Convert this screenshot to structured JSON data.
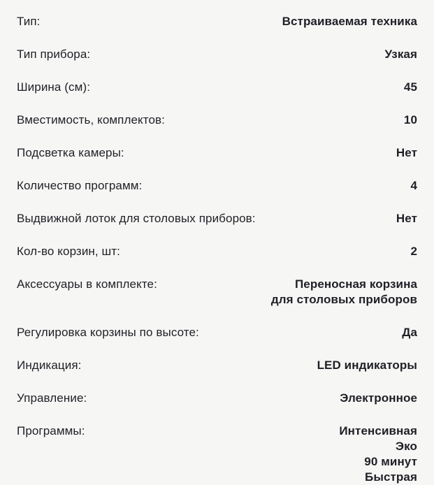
{
  "page": {
    "background_color": "#f6f6f5",
    "text_color": "#1f1f26"
  },
  "specs": {
    "rows": [
      {
        "label": "Тип:",
        "value": "Встраиваемая техника"
      },
      {
        "label": "Тип прибора:",
        "value": "Узкая"
      },
      {
        "label": "Ширина (см):",
        "value": "45"
      },
      {
        "label": "Вместимость, комплектов:",
        "value": "10"
      },
      {
        "label": "Подсветка камеры:",
        "value": "Нет"
      },
      {
        "label": "Количество программ:",
        "value": "4"
      },
      {
        "label": "Выдвижной лоток для столовых приборов:",
        "value": "Нет"
      },
      {
        "label": "Кол-во корзин, шт:",
        "value": "2"
      },
      {
        "label": "Аксессуары в комплекте:",
        "value": [
          "Переносная корзина",
          "для столовых приборов"
        ]
      },
      {
        "label": "Регулировка корзины по высоте:",
        "value": "Да"
      },
      {
        "label": "Индикация:",
        "value": "LED индикаторы"
      },
      {
        "label": "Управление:",
        "value": "Электронное"
      },
      {
        "label": "Программы:",
        "value": [
          "Интенсивная",
          "Эко",
          "90 минут",
          "Быстрая"
        ]
      }
    ]
  }
}
